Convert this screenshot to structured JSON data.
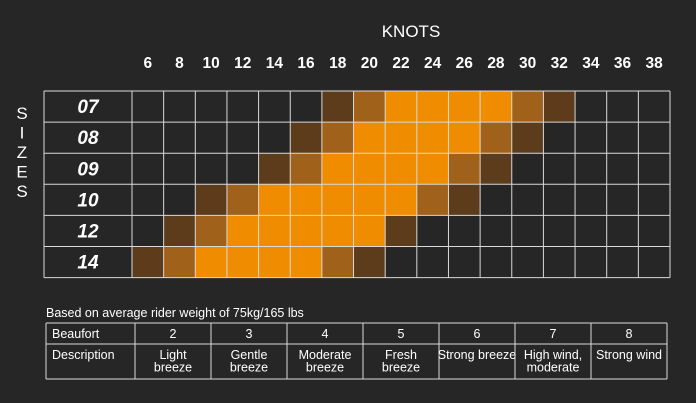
{
  "chart_data": {
    "type": "heatmap",
    "x_axis_title": "KNOTS",
    "y_axis_title": "SIZES",
    "x_categories": [
      "6",
      "8",
      "10",
      "12",
      "14",
      "16",
      "18",
      "20",
      "22",
      "24",
      "26",
      "28",
      "30",
      "32",
      "34",
      "36",
      "38"
    ],
    "y_categories": [
      "07",
      "08",
      "09",
      "10",
      "12",
      "14"
    ],
    "levels": {
      "0": "none",
      "1": "marginal",
      "2": "good",
      "3": "optimal"
    },
    "colors": {
      "background": "#262626",
      "grid": "#d9d9d9",
      "level_0": "#262626",
      "level_1": "#5c3c1b",
      "level_2": "#a0621a",
      "level_3": "#f08c00"
    },
    "values": [
      [
        0,
        0,
        0,
        0,
        0,
        0,
        1,
        2,
        3,
        3,
        3,
        3,
        2,
        1,
        0,
        0,
        0
      ],
      [
        0,
        0,
        0,
        0,
        0,
        1,
        2,
        3,
        3,
        3,
        3,
        2,
        1,
        0,
        0,
        0,
        0
      ],
      [
        0,
        0,
        0,
        0,
        1,
        2,
        3,
        3,
        3,
        3,
        2,
        1,
        0,
        0,
        0,
        0,
        0
      ],
      [
        0,
        0,
        1,
        2,
        3,
        3,
        3,
        3,
        3,
        2,
        1,
        0,
        0,
        0,
        0,
        0,
        0
      ],
      [
        0,
        1,
        2,
        3,
        3,
        3,
        3,
        3,
        1,
        0,
        0,
        0,
        0,
        0,
        0,
        0,
        0
      ],
      [
        1,
        2,
        3,
        3,
        3,
        3,
        2,
        1,
        0,
        0,
        0,
        0,
        0,
        0,
        0,
        0,
        0
      ]
    ]
  },
  "note": "Based on average rider weight of 75kg/165 lbs",
  "beaufort_table": {
    "row_headers": [
      "Beaufort",
      "Description"
    ],
    "scale": [
      "2",
      "3",
      "4",
      "5",
      "6",
      "7",
      "8"
    ],
    "descriptions": [
      [
        "Light",
        "breeze"
      ],
      [
        "Gentle",
        "breeze"
      ],
      [
        "Moderate",
        "breeze"
      ],
      [
        "Fresh",
        "breeze"
      ],
      [
        "Strong breeze"
      ],
      [
        "High wind,",
        "moderate"
      ],
      [
        "Strong wind"
      ]
    ]
  }
}
